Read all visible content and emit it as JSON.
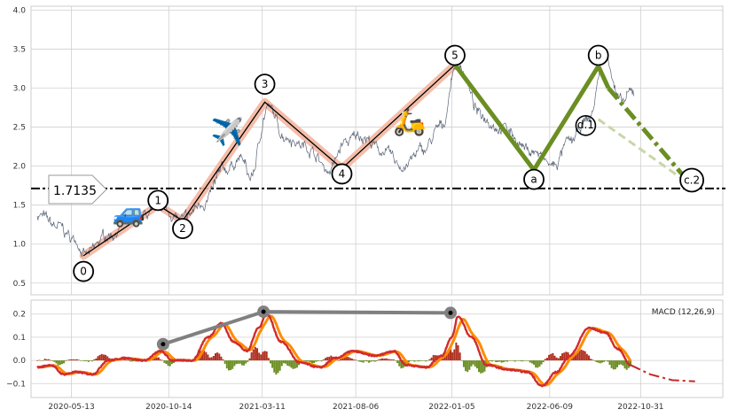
{
  "chart_data": [
    {
      "type": "line",
      "panel": "price",
      "x_range": [
        "2020-03-10",
        "2023-03-10"
      ],
      "ylim": [
        0.35,
        4.05
      ],
      "y_ticks": [
        0.5,
        1.0,
        1.5,
        2.0,
        2.5,
        3.0,
        3.5,
        4.0
      ],
      "y_tick_labels": [
        "0.5",
        "1.0",
        "1.5",
        "2.0",
        "2.5",
        "3.0",
        "3.5",
        "4.0"
      ],
      "grid": true,
      "price_anchors": [
        [
          "2020-03-20",
          1.38
        ],
        [
          "2020-04-20",
          1.22
        ],
        [
          "2020-05-20",
          1.05
        ],
        [
          "2020-06-05",
          0.85
        ],
        [
          "2020-07-10",
          1.12
        ],
        [
          "2020-08-10",
          1.25
        ],
        [
          "2020-09-15",
          1.38
        ],
        [
          "2020-10-01",
          1.5
        ],
        [
          "2020-10-14",
          1.4
        ],
        [
          "2020-11-05",
          1.3
        ],
        [
          "2020-12-10",
          1.55
        ],
        [
          "2021-01-10",
          1.95
        ],
        [
          "2021-02-05",
          2.1
        ],
        [
          "2021-02-20",
          1.85
        ],
        [
          "2021-03-20",
          2.75
        ],
        [
          "2021-04-15",
          2.4
        ],
        [
          "2021-05-20",
          2.25
        ],
        [
          "2021-06-25",
          1.95
        ],
        [
          "2021-07-20",
          2.3
        ],
        [
          "2021-08-15",
          2.4
        ],
        [
          "2021-09-15",
          2.2
        ],
        [
          "2021-10-20",
          2.0
        ],
        [
          "2021-11-20",
          2.2
        ],
        [
          "2021-12-20",
          2.5
        ],
        [
          "2022-01-13",
          3.35
        ],
        [
          "2022-02-20",
          2.65
        ],
        [
          "2022-03-25",
          2.5
        ],
        [
          "2022-05-10",
          2.2
        ],
        [
          "2022-06-15",
          2.0
        ],
        [
          "2022-07-10",
          2.3
        ],
        [
          "2022-08-10",
          2.6
        ],
        [
          "2022-09-05",
          3.45
        ],
        [
          "2022-09-30",
          2.8
        ],
        [
          "2022-10-20",
          2.95
        ]
      ],
      "wave_labels": [
        "0",
        "1",
        "2",
        "3",
        "4",
        "5",
        "a",
        "b",
        "c.2",
        "d.1"
      ],
      "waves": [
        {
          "label": "0",
          "x": "2020-06-01",
          "y": 0.85,
          "label_y": 0.65
        },
        {
          "label": "1",
          "x": "2020-09-27",
          "y": 1.5,
          "label_y": 1.56
        },
        {
          "label": "2",
          "x": "2020-11-05",
          "y": 1.3,
          "label_y": 1.2
        },
        {
          "label": "3",
          "x": "2021-03-15",
          "y": 2.82,
          "label_y": 3.05
        },
        {
          "label": "4",
          "x": "2021-07-15",
          "y": 1.97,
          "label_y": 1.9
        },
        {
          "label": "5",
          "x": "2022-01-10",
          "y": 3.3,
          "label_y": 3.42
        },
        {
          "label": "a",
          "x": "2022-05-15",
          "y": 1.95,
          "label_y": 1.83
        },
        {
          "label": "b",
          "x": "2022-08-25",
          "y": 3.28,
          "label_y": 3.42
        },
        {
          "label": "c.2",
          "x": "2023-01-20",
          "y": 1.75,
          "label_y": 1.82
        }
      ],
      "d1_label": {
        "label": "d.1",
        "x": "2022-08-05",
        "y": 2.52
      },
      "c_dashed_from": {
        "x": "2022-09-10",
        "y": 3.0
      },
      "c_faint_from": {
        "x": "2022-08-25",
        "y": 2.6
      },
      "support_level": 1.7135,
      "support_label": "1.7135",
      "emoji_markers": [
        {
          "icon": "car-icon",
          "glyph": "🚙",
          "x": "2020-08-12",
          "y": 1.38
        },
        {
          "icon": "airplane-icon",
          "glyph": "✈️",
          "x": "2021-01-15",
          "y": 2.42
        },
        {
          "icon": "scooter-icon",
          "glyph": "🛵",
          "x": "2021-10-30",
          "y": 2.55
        }
      ],
      "colors": {
        "price": "#5a6478",
        "impulse_bg": "#f4b6a0",
        "impulse_line": "#000000",
        "correction": "#6b8e23",
        "correction_faint": "#c9d6a8",
        "support": "#000000",
        "grid": "#d0d0d0"
      }
    },
    {
      "type": "line",
      "panel": "macd",
      "legend": "MACD (12,26,9)",
      "ylim": [
        -0.16,
        0.26
      ],
      "y_ticks": [
        -0.1,
        0.0,
        0.1,
        0.2
      ],
      "y_tick_labels": [
        "−0.1",
        "0.0",
        "0.1",
        "0.2"
      ],
      "x_ticks": [
        "2020-05-13",
        "2020-10-14",
        "2021-03-11",
        "2021-08-06",
        "2022-01-05",
        "2022-06-09",
        "2022-10-31"
      ],
      "x_tick_labels": [
        "2020-05-13",
        "2020-10-14",
        "2021-03-11",
        "2021-08-06",
        "2022-01-05",
        "2022-06-09",
        "2022-10-31"
      ],
      "macd_anchors": [
        [
          "2020-03-20",
          -0.03
        ],
        [
          "2020-04-10",
          -0.02
        ],
        [
          "2020-05-01",
          -0.06
        ],
        [
          "2020-05-20",
          -0.05
        ],
        [
          "2020-06-15",
          -0.06
        ],
        [
          "2020-07-10",
          0.0
        ],
        [
          "2020-08-05",
          0.01
        ],
        [
          "2020-09-05",
          0.0
        ],
        [
          "2020-10-01",
          0.04
        ],
        [
          "2020-10-20",
          0.0
        ],
        [
          "2020-11-20",
          0.0
        ],
        [
          "2020-12-15",
          0.1
        ],
        [
          "2021-01-05",
          0.16
        ],
        [
          "2021-01-25",
          0.08
        ],
        [
          "2021-02-15",
          0.04
        ],
        [
          "2021-03-05",
          0.14
        ],
        [
          "2021-03-18",
          0.2
        ],
        [
          "2021-04-10",
          0.08
        ],
        [
          "2021-05-10",
          -0.01
        ],
        [
          "2021-06-10",
          -0.03
        ],
        [
          "2021-07-05",
          0.01
        ],
        [
          "2021-08-01",
          0.04
        ],
        [
          "2021-09-05",
          0.02
        ],
        [
          "2021-10-05",
          0.04
        ],
        [
          "2021-10-25",
          -0.02
        ],
        [
          "2021-11-25",
          -0.03
        ],
        [
          "2021-12-20",
          0.02
        ],
        [
          "2022-01-05",
          0.1
        ],
        [
          "2022-01-15",
          0.19
        ],
        [
          "2022-02-05",
          0.1
        ],
        [
          "2022-03-01",
          -0.02
        ],
        [
          "2022-04-05",
          -0.04
        ],
        [
          "2022-05-05",
          -0.05
        ],
        [
          "2022-05-28",
          -0.11
        ],
        [
          "2022-06-20",
          -0.05
        ],
        [
          "2022-07-10",
          0.02
        ],
        [
          "2022-08-10",
          0.14
        ],
        [
          "2022-09-05",
          0.12
        ],
        [
          "2022-09-25",
          0.05
        ],
        [
          "2022-10-15",
          -0.02
        ]
      ],
      "signal_lag_days": 12,
      "projection": [
        [
          "2022-10-15",
          -0.02
        ],
        [
          "2022-11-15",
          -0.06
        ],
        [
          "2022-12-20",
          -0.085
        ],
        [
          "2023-01-25",
          -0.09
        ]
      ],
      "trend_points": [
        {
          "x": "2020-10-05",
          "y": 0.07
        },
        {
          "x": "2021-03-13",
          "y": 0.21
        },
        {
          "x": "2022-01-03",
          "y": 0.205
        }
      ],
      "colors": {
        "macd": "#d02c2c",
        "signal": "#ff8c00",
        "hist_pos": "#b03020",
        "hist_neg": "#6b8e23",
        "trend": "#808080",
        "projection": "#c62828"
      }
    }
  ]
}
